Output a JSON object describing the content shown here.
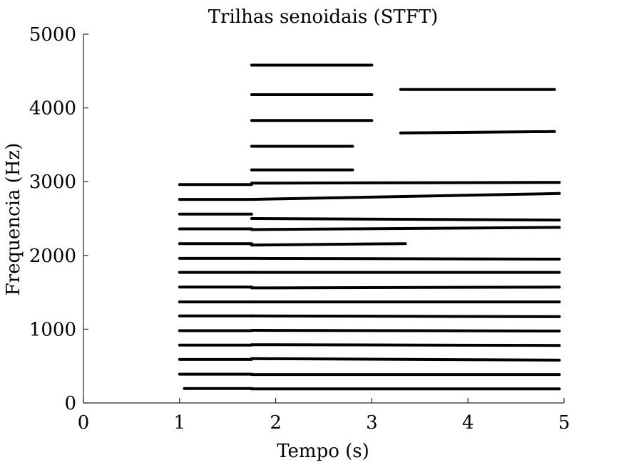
{
  "chart_data": {
    "type": "scatter",
    "title": "Trilhas senoidais (STFT)",
    "xlabel": "Tempo (s)",
    "ylabel": "Frequencia (Hz)",
    "xlim": [
      0,
      5
    ],
    "ylim": [
      0,
      5000
    ],
    "xticks": [
      "0",
      "1",
      "2",
      "3",
      "4",
      "5"
    ],
    "yticks": [
      "0",
      "1000",
      "2000",
      "3000",
      "4000",
      "5000"
    ],
    "grid": false,
    "legend": "none",
    "line_color": "#000000",
    "tracks": [
      {
        "t": [
          1.05,
          1.75
        ],
        "f": [
          195,
          195
        ]
      },
      {
        "t": [
          1.75,
          4.95
        ],
        "f": [
          190,
          190
        ]
      },
      {
        "t": [
          1.0,
          1.75
        ],
        "f": [
          390,
          390
        ]
      },
      {
        "t": [
          1.75,
          4.95
        ],
        "f": [
          385,
          385
        ]
      },
      {
        "t": [
          1.0,
          1.75
        ],
        "f": [
          590,
          590
        ]
      },
      {
        "t": [
          1.75,
          4.95
        ],
        "f": [
          600,
          580
        ]
      },
      {
        "t": [
          1.0,
          1.75
        ],
        "f": [
          785,
          785
        ]
      },
      {
        "t": [
          1.75,
          4.95
        ],
        "f": [
          790,
          780
        ]
      },
      {
        "t": [
          1.0,
          1.75
        ],
        "f": [
          980,
          980
        ]
      },
      {
        "t": [
          1.75,
          4.95
        ],
        "f": [
          985,
          975
        ]
      },
      {
        "t": [
          1.0,
          1.75
        ],
        "f": [
          1180,
          1180
        ]
      },
      {
        "t": [
          1.75,
          4.95
        ],
        "f": [
          1180,
          1170
        ]
      },
      {
        "t": [
          1.0,
          1.75
        ],
        "f": [
          1370,
          1370
        ]
      },
      {
        "t": [
          1.75,
          4.95
        ],
        "f": [
          1370,
          1370
        ]
      },
      {
        "t": [
          1.0,
          1.75
        ],
        "f": [
          1570,
          1570
        ]
      },
      {
        "t": [
          1.75,
          4.95
        ],
        "f": [
          1560,
          1570
        ]
      },
      {
        "t": [
          1.0,
          1.75
        ],
        "f": [
          1770,
          1770
        ]
      },
      {
        "t": [
          1.75,
          4.95
        ],
        "f": [
          1770,
          1770
        ]
      },
      {
        "t": [
          1.0,
          1.75
        ],
        "f": [
          1960,
          1960
        ]
      },
      {
        "t": [
          1.75,
          4.95
        ],
        "f": [
          1960,
          1950
        ]
      },
      {
        "t": [
          1.0,
          1.75
        ],
        "f": [
          2160,
          2160
        ]
      },
      {
        "t": [
          1.75,
          3.35
        ],
        "f": [
          2140,
          2160
        ]
      },
      {
        "t": [
          1.0,
          1.75
        ],
        "f": [
          2360,
          2360
        ]
      },
      {
        "t": [
          1.75,
          4.95
        ],
        "f": [
          2350,
          2380
        ]
      },
      {
        "t": [
          1.0,
          1.75
        ],
        "f": [
          2560,
          2560
        ]
      },
      {
        "t": [
          1.75,
          4.95
        ],
        "f": [
          2500,
          2480
        ]
      },
      {
        "t": [
          1.0,
          1.75
        ],
        "f": [
          2760,
          2760
        ]
      },
      {
        "t": [
          1.75,
          4.95
        ],
        "f": [
          2760,
          2840
        ]
      },
      {
        "t": [
          1.0,
          1.75
        ],
        "f": [
          2960,
          2960
        ]
      },
      {
        "t": [
          1.75,
          4.95
        ],
        "f": [
          2980,
          2990
        ]
      },
      {
        "t": [
          1.75,
          2.8
        ],
        "f": [
          3160,
          3160
        ]
      },
      {
        "t": [
          1.75,
          2.8
        ],
        "f": [
          3480,
          3480
        ]
      },
      {
        "t": [
          1.75,
          3.0
        ],
        "f": [
          3830,
          3830
        ]
      },
      {
        "t": [
          1.75,
          3.0
        ],
        "f": [
          4180,
          4180
        ]
      },
      {
        "t": [
          1.75,
          3.0
        ],
        "f": [
          4580,
          4580
        ]
      },
      {
        "t": [
          3.3,
          4.9
        ],
        "f": [
          3660,
          3680
        ]
      },
      {
        "t": [
          3.3,
          4.9
        ],
        "f": [
          4250,
          4250
        ]
      }
    ]
  }
}
